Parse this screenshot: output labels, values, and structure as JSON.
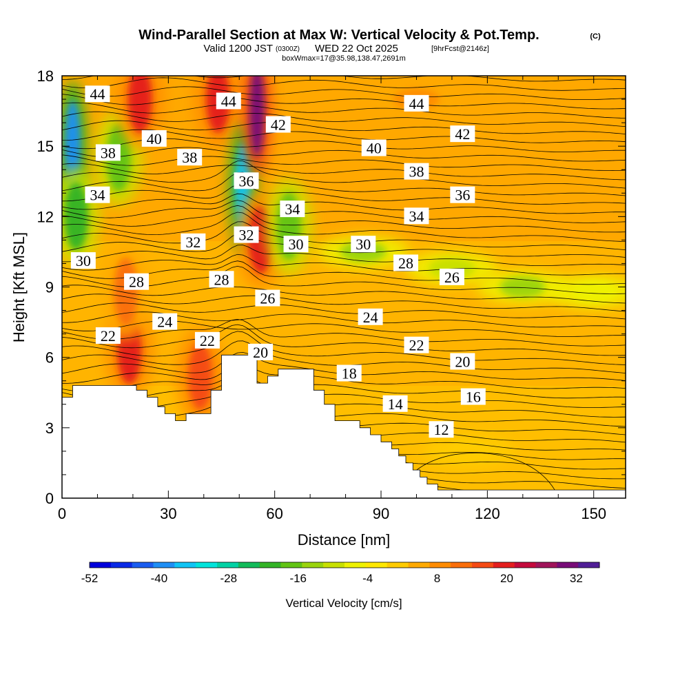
{
  "header": {
    "title": "Wind-Parallel Section at Max W: Vertical Velocity & Pot.Temp.",
    "copyright": "(C)",
    "valid_prefix": "Valid 1200 JST",
    "valid_utc": "(0300Z)",
    "valid_date": "WED 22 Oct 2025",
    "forecast_info": "[9hrFcst@2146z]",
    "box_info": "boxWmax=17@35.98,138.47,2691m"
  },
  "chart_data": {
    "type": "heatmap",
    "title": "Wind-Parallel Section at Max W: Vertical Velocity & Pot.Temp.",
    "xlabel": "Distance [nm]",
    "ylabel": "Height [Kft MSL]",
    "xlim": [
      0,
      159
    ],
    "ylim": [
      0,
      18
    ],
    "x_ticks": [
      0,
      30,
      60,
      90,
      120,
      150
    ],
    "y_ticks": [
      0,
      3,
      6,
      9,
      12,
      15,
      18
    ],
    "colorbar": {
      "label": "Vertical Velocity [cm/s]",
      "range": [
        -52,
        36
      ],
      "tick_labels": [
        -52,
        -40,
        -28,
        -16,
        -4,
        8,
        20,
        32
      ],
      "colors": [
        "#0000dc",
        "#0a2ae6",
        "#1a5df0",
        "#1f8ff5",
        "#10c4f5",
        "#00e4dc",
        "#00d2a5",
        "#12bb5a",
        "#33b326",
        "#62c414",
        "#9ad40d",
        "#c8e000",
        "#eef200",
        "#ffe800",
        "#ffcc00",
        "#ffaa00",
        "#ff8c00",
        "#fa6e0a",
        "#f54a14",
        "#e41e1e",
        "#c40a3c",
        "#a0145a",
        "#780c78",
        "#501e96"
      ]
    },
    "velocity_features": [
      {
        "x": 3,
        "y": 15.0,
        "w": -40
      },
      {
        "x": 4,
        "y": 12.0,
        "w": -20
      },
      {
        "x": 16,
        "y": 14.5,
        "w": -18
      },
      {
        "x": 22,
        "y": 17.0,
        "w": 18
      },
      {
        "x": 19,
        "y": 6.3,
        "w": 18
      },
      {
        "x": 18,
        "y": 8.8,
        "w": 12
      },
      {
        "x": 44,
        "y": 17.0,
        "w": 18
      },
      {
        "x": 51,
        "y": 13.2,
        "w": -36
      },
      {
        "x": 55,
        "y": 16.5,
        "w": 32
      },
      {
        "x": 56,
        "y": 11.0,
        "w": 18
      },
      {
        "x": 39,
        "y": 5.2,
        "w": 16
      },
      {
        "x": 64,
        "y": 11.6,
        "w": -18
      },
      {
        "x": 85,
        "y": 10.5,
        "w": -14
      },
      {
        "x": 110,
        "y": 9.8,
        "w": -10
      },
      {
        "x": 130,
        "y": 9.0,
        "w": -12
      },
      {
        "x": 150,
        "y": 8.8,
        "w": -8
      },
      {
        "x": 100,
        "y": 17.0,
        "w": 8
      },
      {
        "x": 115,
        "y": 2.0,
        "w": 2
      }
    ],
    "theta_contours": {
      "interval": 1,
      "labels": [
        {
          "x": 10,
          "y": 17.2,
          "value": "44"
        },
        {
          "x": 47,
          "y": 16.9,
          "value": "44"
        },
        {
          "x": 100,
          "y": 16.8,
          "value": "44"
        },
        {
          "x": 61,
          "y": 15.9,
          "value": "42"
        },
        {
          "x": 113,
          "y": 15.5,
          "value": "42"
        },
        {
          "x": 26,
          "y": 15.3,
          "value": "40"
        },
        {
          "x": 88,
          "y": 14.9,
          "value": "40"
        },
        {
          "x": 13,
          "y": 14.7,
          "value": "38"
        },
        {
          "x": 36,
          "y": 14.5,
          "value": "38"
        },
        {
          "x": 100,
          "y": 13.9,
          "value": "38"
        },
        {
          "x": 52,
          "y": 13.5,
          "value": "36"
        },
        {
          "x": 113,
          "y": 12.9,
          "value": "36"
        },
        {
          "x": 10,
          "y": 12.9,
          "value": "34"
        },
        {
          "x": 65,
          "y": 12.3,
          "value": "34"
        },
        {
          "x": 100,
          "y": 12.0,
          "value": "34"
        },
        {
          "x": 52,
          "y": 11.2,
          "value": "32"
        },
        {
          "x": 37,
          "y": 10.9,
          "value": "32"
        },
        {
          "x": 6,
          "y": 10.1,
          "value": "30"
        },
        {
          "x": 66,
          "y": 10.8,
          "value": "30"
        },
        {
          "x": 85,
          "y": 10.8,
          "value": "30"
        },
        {
          "x": 97,
          "y": 10.0,
          "value": "28"
        },
        {
          "x": 21,
          "y": 9.2,
          "value": "28"
        },
        {
          "x": 45,
          "y": 9.3,
          "value": "28"
        },
        {
          "x": 110,
          "y": 9.4,
          "value": "26"
        },
        {
          "x": 58,
          "y": 8.5,
          "value": "26"
        },
        {
          "x": 29,
          "y": 7.5,
          "value": "24"
        },
        {
          "x": 87,
          "y": 7.7,
          "value": "24"
        },
        {
          "x": 13,
          "y": 6.9,
          "value": "22"
        },
        {
          "x": 41,
          "y": 6.7,
          "value": "22"
        },
        {
          "x": 100,
          "y": 6.5,
          "value": "22"
        },
        {
          "x": 56,
          "y": 6.2,
          "value": "20"
        },
        {
          "x": 113,
          "y": 5.8,
          "value": "20"
        },
        {
          "x": 81,
          "y": 5.3,
          "value": "18"
        },
        {
          "x": 116,
          "y": 4.3,
          "value": "16"
        },
        {
          "x": 94,
          "y": 4.0,
          "value": "14"
        },
        {
          "x": 107,
          "y": 2.9,
          "value": "12"
        }
      ]
    },
    "terrain": [
      [
        0,
        4.3
      ],
      [
        3,
        4.3
      ],
      [
        3,
        4.8
      ],
      [
        7,
        4.8
      ],
      [
        7,
        4.8
      ],
      [
        21,
        4.8
      ],
      [
        21,
        4.6
      ],
      [
        24,
        4.6
      ],
      [
        24,
        4.3
      ],
      [
        27,
        4.3
      ],
      [
        27,
        3.9
      ],
      [
        29,
        3.9
      ],
      [
        29,
        3.6
      ],
      [
        32,
        3.6
      ],
      [
        32,
        3.3
      ],
      [
        35,
        3.3
      ],
      [
        35,
        3.6
      ],
      [
        42,
        3.6
      ],
      [
        42,
        4.6
      ],
      [
        45,
        4.6
      ],
      [
        45,
        6.1
      ],
      [
        55,
        6.1
      ],
      [
        55,
        4.9
      ],
      [
        58,
        4.9
      ],
      [
        58,
        5.2
      ],
      [
        61,
        5.2
      ],
      [
        61,
        5.5
      ],
      [
        71,
        5.5
      ],
      [
        71,
        4.6
      ],
      [
        74,
        4.6
      ],
      [
        74,
        4.0
      ],
      [
        77,
        4.0
      ],
      [
        77,
        3.3
      ],
      [
        84,
        3.3
      ],
      [
        84,
        3.0
      ],
      [
        87,
        3.0
      ],
      [
        87,
        2.7
      ],
      [
        90,
        2.7
      ],
      [
        90,
        2.4
      ],
      [
        93,
        2.4
      ],
      [
        93,
        2.1
      ],
      [
        95,
        2.1
      ],
      [
        95,
        1.8
      ],
      [
        97,
        1.8
      ],
      [
        97,
        1.5
      ],
      [
        99,
        1.5
      ],
      [
        99,
        1.2
      ],
      [
        101,
        1.2
      ],
      [
        101,
        0.9
      ],
      [
        103,
        0.9
      ],
      [
        103,
        0.6
      ],
      [
        106,
        0.6
      ],
      [
        106,
        0.35
      ],
      [
        159,
        0.35
      ],
      [
        159,
        0
      ]
    ]
  }
}
